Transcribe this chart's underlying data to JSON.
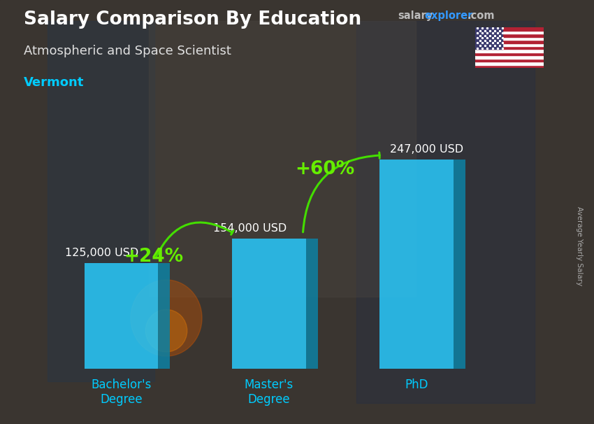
{
  "title": "Salary Comparison By Education",
  "subtitle": "Atmospheric and Space Scientist",
  "location": "Vermont",
  "ylabel": "Average Yearly Salary",
  "categories": [
    "Bachelor's\nDegree",
    "Master's\nDegree",
    "PhD"
  ],
  "values": [
    125000,
    154000,
    247000
  ],
  "value_labels": [
    "125,000 USD",
    "154,000 USD",
    "247,000 USD"
  ],
  "bar_color_front": "#29c5f6",
  "bar_color_side": "#1a9fc5",
  "bar_color_top": "#55d8ff",
  "bar_color_dark_side": "#0e7fa0",
  "pct_labels": [
    "+24%",
    "+60%"
  ],
  "pct_color": "#66ee00",
  "arrow_color": "#44dd00",
  "bg_color": "#1a1a2e",
  "title_color": "#ffffff",
  "subtitle_color": "#e0e0e0",
  "location_color": "#00ccff",
  "value_label_color": "#ffffff",
  "xtick_color": "#00ccff",
  "ylim": [
    0,
    310000
  ],
  "bar_centers": [
    1,
    2,
    3
  ],
  "bar_width": 0.5
}
